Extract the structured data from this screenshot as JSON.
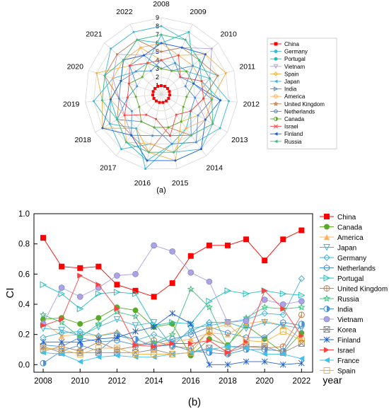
{
  "colors": {
    "China": "#ff0000",
    "Germany": "#3fb4d8",
    "Portugal": "#20c0c0",
    "Vietnam": "#b0a0e6",
    "Spain": "#f0b040",
    "Japan": "#3fb4d8",
    "India": "#4a90d9",
    "America": "#ffb060",
    "UnitedKingdom": "#c08050",
    "Netherlands": "#4a90d9",
    "Canada": "#5aaa2a",
    "Israel": "#ff4040",
    "Finland": "#2060d0",
    "Russia": "#40c080",
    "France": "#40c0f0"
  },
  "chart_data": [
    {
      "type": "radar",
      "caption": "(a)",
      "axes": [
        "2008",
        "2009",
        "2010",
        "2011",
        "2012",
        "2013",
        "2014",
        "2015",
        "2016",
        "2017",
        "2018",
        "2019",
        "2020",
        "2021",
        "2022"
      ],
      "r_ticks": [
        "0",
        "1",
        "2",
        "3",
        "4",
        "5",
        "6",
        "7",
        "8",
        "9"
      ],
      "rlim": [
        0,
        9
      ],
      "legend_position": "right",
      "series": [
        {
          "name": "China",
          "icon": "square",
          "values": [
            1,
            1,
            1,
            1,
            1,
            1,
            1,
            1,
            1,
            1,
            1,
            1,
            1,
            1,
            1
          ]
        },
        {
          "name": "Germany",
          "icon": "circle",
          "values": [
            8,
            7,
            6,
            5,
            7,
            7,
            8,
            7,
            6,
            8,
            7,
            6,
            7,
            8,
            8
          ]
        },
        {
          "name": "Portugal",
          "icon": "circle",
          "values": [
            6,
            8,
            5,
            7,
            5,
            4,
            5,
            6,
            8,
            7,
            6,
            6,
            5,
            6,
            7
          ]
        },
        {
          "name": "Vietnam",
          "icon": "triangle-down",
          "values": [
            5,
            6,
            8,
            6,
            4,
            6,
            6,
            5,
            5,
            6,
            5,
            5,
            6,
            7,
            5
          ]
        },
        {
          "name": "Spain",
          "icon": "diamond",
          "values": [
            4,
            5,
            7,
            8,
            6,
            5,
            4,
            8,
            7,
            5,
            8,
            7,
            8,
            5,
            6
          ]
        },
        {
          "name": "Japan",
          "icon": "triangle-left",
          "values": [
            7,
            4,
            4,
            6,
            8,
            8,
            7,
            6,
            9,
            5,
            7,
            8,
            6,
            4,
            4
          ]
        },
        {
          "name": "India",
          "icon": "triangle-right",
          "values": [
            3,
            4,
            3,
            4,
            6,
            5,
            7,
            6,
            4,
            4,
            6,
            4,
            3,
            5,
            5
          ]
        },
        {
          "name": "America",
          "icon": "hexagon",
          "values": [
            6,
            5,
            5,
            5,
            6,
            6,
            5,
            7,
            6,
            7,
            5,
            6,
            6,
            6,
            6
          ]
        },
        {
          "name": "United Kingdom",
          "icon": "star",
          "values": [
            5,
            6,
            6,
            7,
            5,
            7,
            6,
            4,
            7,
            6,
            6,
            5,
            7,
            7,
            7
          ]
        },
        {
          "name": "Netherlands",
          "icon": "pentagon",
          "values": [
            4,
            3,
            5,
            3,
            4,
            4,
            6,
            5,
            5,
            6,
            4,
            5,
            5,
            4,
            3
          ]
        },
        {
          "name": "Canada",
          "icon": "circle-half",
          "values": [
            3,
            3,
            4,
            4,
            3,
            3,
            4,
            4,
            4,
            4,
            3,
            3,
            4,
            3,
            4
          ]
        },
        {
          "name": "Israel",
          "icon": "x",
          "values": [
            4,
            5,
            3,
            5,
            5,
            4,
            3,
            5,
            3,
            3,
            5,
            4,
            4,
            5,
            4
          ]
        },
        {
          "name": "Finland",
          "icon": "triangle-left",
          "values": [
            6,
            6,
            7,
            4,
            7,
            6,
            8,
            8,
            8,
            6,
            8,
            6,
            5,
            6,
            5
          ]
        },
        {
          "name": "Russia",
          "icon": "triangle-left",
          "values": [
            7,
            7,
            6,
            6,
            6,
            7,
            6,
            7,
            7,
            7,
            6,
            7,
            7,
            6,
            7
          ]
        }
      ]
    },
    {
      "type": "line",
      "caption": "(b)",
      "ylabel": "CI",
      "xlabel": "year",
      "x": [
        2008,
        2009,
        2010,
        2011,
        2012,
        2013,
        2014,
        2015,
        2016,
        2017,
        2018,
        2019,
        2020,
        2021,
        2022
      ],
      "xticks": [
        "2008",
        "2010",
        "2012",
        "2014",
        "2016",
        "2018",
        "2020",
        "2022"
      ],
      "yticks": [
        "0.0",
        "0.2",
        "0.4",
        "0.6",
        "0.8",
        "1.0"
      ],
      "xlim": [
        2007.5,
        2022.6
      ],
      "ylim": [
        -0.05,
        1.0
      ],
      "legend_position": "right",
      "series": [
        {
          "name": "China",
          "marker": "square",
          "values": [
            0.84,
            0.65,
            0.64,
            0.65,
            0.53,
            0.49,
            0.45,
            0.54,
            0.72,
            0.79,
            0.79,
            0.83,
            0.69,
            0.83,
            0.89
          ]
        },
        {
          "name": "Canada",
          "marker": "circle",
          "values": [
            0.3,
            0.31,
            0.27,
            0.31,
            0.38,
            0.36,
            0.25,
            0.27,
            0.06,
            0.17,
            0.13,
            0.26,
            0.17,
            0.08,
            0.21
          ]
        },
        {
          "name": "America",
          "marker": "triangle-up",
          "values": [
            0.28,
            0.19,
            0.2,
            0.19,
            0.22,
            0.14,
            0.13,
            0.15,
            0.17,
            0.21,
            0.2,
            0.27,
            0.29,
            0.26,
            0.17
          ]
        },
        {
          "name": "Japan",
          "marker": "triangle-down",
          "values": [
            0.24,
            0.23,
            0.19,
            0.25,
            0.3,
            0.26,
            0.28,
            0.12,
            0.24,
            0.26,
            0.28,
            0.24,
            0.28,
            0.26,
            0.24
          ]
        },
        {
          "name": "Germany",
          "marker": "diamond",
          "values": [
            0.18,
            0.21,
            0.22,
            0.19,
            0.21,
            0.16,
            0.2,
            0.15,
            0.22,
            0.28,
            0.28,
            0.3,
            0.34,
            0.33,
            0.57
          ]
        },
        {
          "name": "Netherlands",
          "marker": "hexagon",
          "values": [
            0.13,
            0.12,
            0.18,
            0.15,
            0.16,
            0.13,
            0.14,
            0.17,
            0.2,
            0.25,
            0.21,
            0.18,
            0.18,
            0.28,
            0.26
          ]
        },
        {
          "name": "Portugal",
          "marker": "triangle-right",
          "values": [
            0.53,
            0.47,
            0.37,
            0.47,
            0.48,
            0.47,
            0.26,
            0.28,
            0.27,
            0.42,
            0.49,
            0.47,
            0.49,
            0.47,
            0.46
          ]
        },
        {
          "name": "United Kingdom",
          "marker": "circle-bar",
          "values": [
            0.09,
            0.12,
            0.09,
            0.15,
            0.1,
            0.12,
            0.16,
            0.12,
            0.11,
            0.22,
            0.12,
            0.12,
            0.11,
            0.12,
            0.33
          ]
        },
        {
          "name": "Russia",
          "marker": "star",
          "values": [
            0.33,
            0.28,
            0.18,
            0.27,
            0.35,
            0.32,
            0.14,
            0.2,
            0.5,
            0.38,
            0.12,
            0.31,
            0.38,
            0.37,
            0.38
          ]
        },
        {
          "name": "India",
          "marker": "circle-half",
          "values": [
            0.01,
            0.09,
            0.13,
            0.09,
            0.19,
            0.17,
            0.12,
            0.13,
            0.09,
            0.08,
            0.07,
            0.1,
            0.1,
            0.09,
            0.27
          ]
        },
        {
          "name": "Vietnam",
          "marker": "sphere",
          "values": [
            0.27,
            0.51,
            0.45,
            0.51,
            0.59,
            0.6,
            0.79,
            0.75,
            0.61,
            0.55,
            0.28,
            0.29,
            0.43,
            0.4,
            0.42
          ]
        },
        {
          "name": "Korea",
          "marker": "square-x",
          "values": [
            0.12,
            0.08,
            0.08,
            0.08,
            0.08,
            0.08,
            0.1,
            0.07,
            0.08,
            0.11,
            0.08,
            0.12,
            0.12,
            0.08,
            0.14
          ]
        },
        {
          "name": "Finland",
          "marker": "asterisk",
          "values": [
            0.15,
            0.15,
            0.15,
            0.17,
            0.18,
            0.22,
            0.25,
            0.34,
            0.27,
            0.0,
            0.0,
            0.02,
            0.02,
            0.0,
            0.01
          ]
        },
        {
          "name": "Israel",
          "marker": "play",
          "values": [
            0.26,
            0.3,
            0.59,
            0.53,
            0.37,
            0.13,
            0.12,
            0.14,
            0.14,
            0.16,
            0.08,
            0.15,
            0.49,
            0.37,
            0.19
          ]
        },
        {
          "name": "France",
          "marker": "triangle-left",
          "values": [
            0.08,
            0.07,
            0.02,
            0.05,
            0.06,
            0.05,
            0.05,
            0.07,
            0.08,
            0.1,
            0.12,
            0.11,
            0.07,
            0.07,
            0.04
          ]
        },
        {
          "name": "Spain",
          "marker": "square-open",
          "values": [
            0.11,
            0.1,
            0.07,
            0.11,
            0.11,
            0.07,
            0.07,
            0.07,
            0.08,
            0.23,
            0.27,
            0.16,
            0.15,
            0.22,
            0.16
          ]
        }
      ]
    }
  ]
}
